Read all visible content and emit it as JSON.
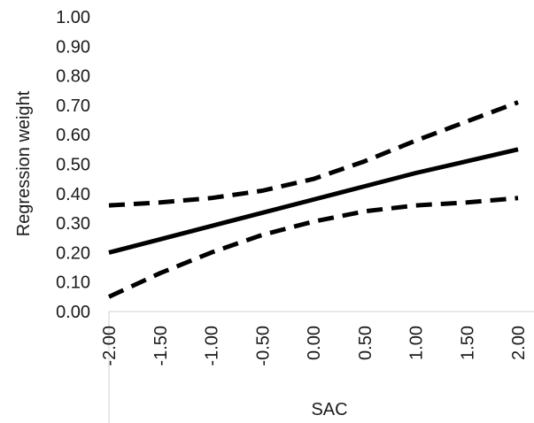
{
  "chart_data": {
    "type": "line",
    "xlabel": "SAC",
    "ylabel": "Regression weight",
    "x_tick_labels": [
      "-2.00",
      "-1.50",
      "-1.00",
      "-0.50",
      "0.00",
      "0.50",
      "1.00",
      "1.50",
      "2.00"
    ],
    "y_tick_labels": [
      "0.00",
      "0.10",
      "0.20",
      "0.30",
      "0.40",
      "0.50",
      "0.60",
      "0.70",
      "0.80",
      "0.90",
      "1.00"
    ],
    "xlim": [
      -2.0,
      2.0
    ],
    "ylim": [
      0.0,
      1.0
    ],
    "grid": false,
    "series": [
      {
        "style": "solid",
        "color": "#000000",
        "x": [
          -2.0,
          -1.5,
          -1.0,
          -0.5,
          0.0,
          0.5,
          1.0,
          1.5,
          2.0
        ],
        "values": [
          0.2,
          0.245,
          0.29,
          0.335,
          0.38,
          0.425,
          0.47,
          0.51,
          0.55
        ]
      },
      {
        "style": "dashed",
        "color": "#000000",
        "x": [
          -2.0,
          -1.5,
          -1.0,
          -0.5,
          0.0,
          0.5,
          1.0,
          1.5,
          2.0
        ],
        "values": [
          0.36,
          0.37,
          0.385,
          0.41,
          0.45,
          0.51,
          0.58,
          0.645,
          0.71
        ]
      },
      {
        "style": "dashed",
        "color": "#000000",
        "x": [
          -2.0,
          -1.5,
          -1.0,
          -0.5,
          0.0,
          0.5,
          1.0,
          1.5,
          2.0
        ],
        "values": [
          0.05,
          0.13,
          0.2,
          0.26,
          0.305,
          0.34,
          0.36,
          0.37,
          0.385
        ]
      }
    ]
  }
}
